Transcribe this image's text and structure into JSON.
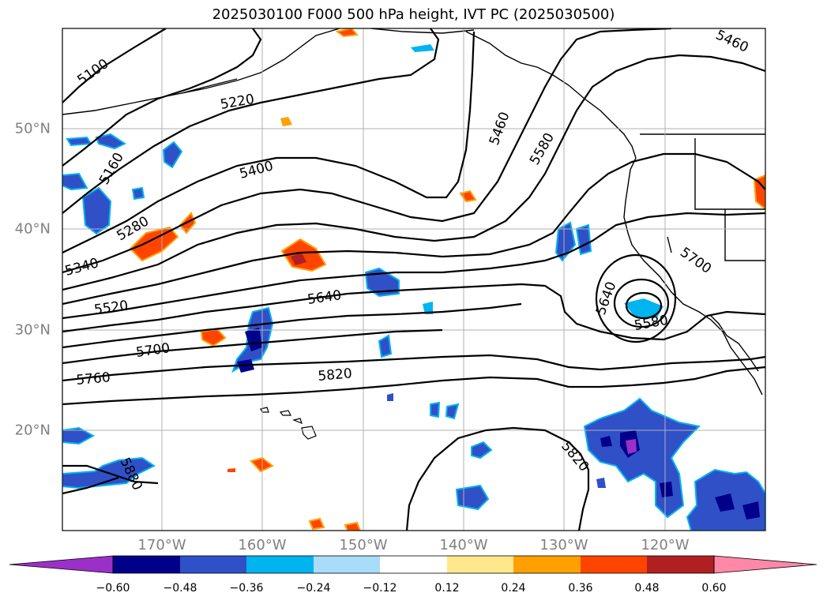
{
  "title": "2025030100 F000 500 hPa height, IVT PC (2025030500)",
  "map": {
    "lon_range": [
      -180,
      -110
    ],
    "lat_range": [
      10,
      60
    ],
    "lon_ticks": [
      {
        "value": -170,
        "label": "170°W"
      },
      {
        "value": -160,
        "label": "160°W"
      },
      {
        "value": -150,
        "label": "150°W"
      },
      {
        "value": -140,
        "label": "140°W"
      },
      {
        "value": -130,
        "label": "130°W"
      },
      {
        "value": -120,
        "label": "120°W"
      }
    ],
    "lat_ticks": [
      {
        "value": 50,
        "label": "50°N"
      },
      {
        "value": 40,
        "label": "40°N"
      },
      {
        "value": 30,
        "label": "30°N"
      },
      {
        "value": 20,
        "label": "20°N"
      }
    ],
    "gridlines": true,
    "contour_labels": [
      "5100",
      "5160",
      "5220",
      "5280",
      "5340",
      "5400",
      "5460",
      "5460",
      "5520",
      "5580",
      "5580",
      "5640",
      "5640",
      "5700",
      "5700",
      "5760",
      "5820",
      "5820",
      "5880"
    ]
  },
  "colorbar": {
    "ticks": [
      "−0.60",
      "−0.48",
      "−0.36",
      "−0.24",
      "−0.12",
      "0.12",
      "0.24",
      "0.36",
      "0.48",
      "0.60"
    ],
    "colors": {
      "under": "#9b30c8",
      "bins": [
        "#00008b",
        "#3050c8",
        "#00b4f0",
        "#a8dcf8",
        "#ffffff",
        "#ffe88c",
        "#ffa000",
        "#ff4400",
        "#b02020"
      ],
      "over": "#ff88a8"
    }
  }
}
